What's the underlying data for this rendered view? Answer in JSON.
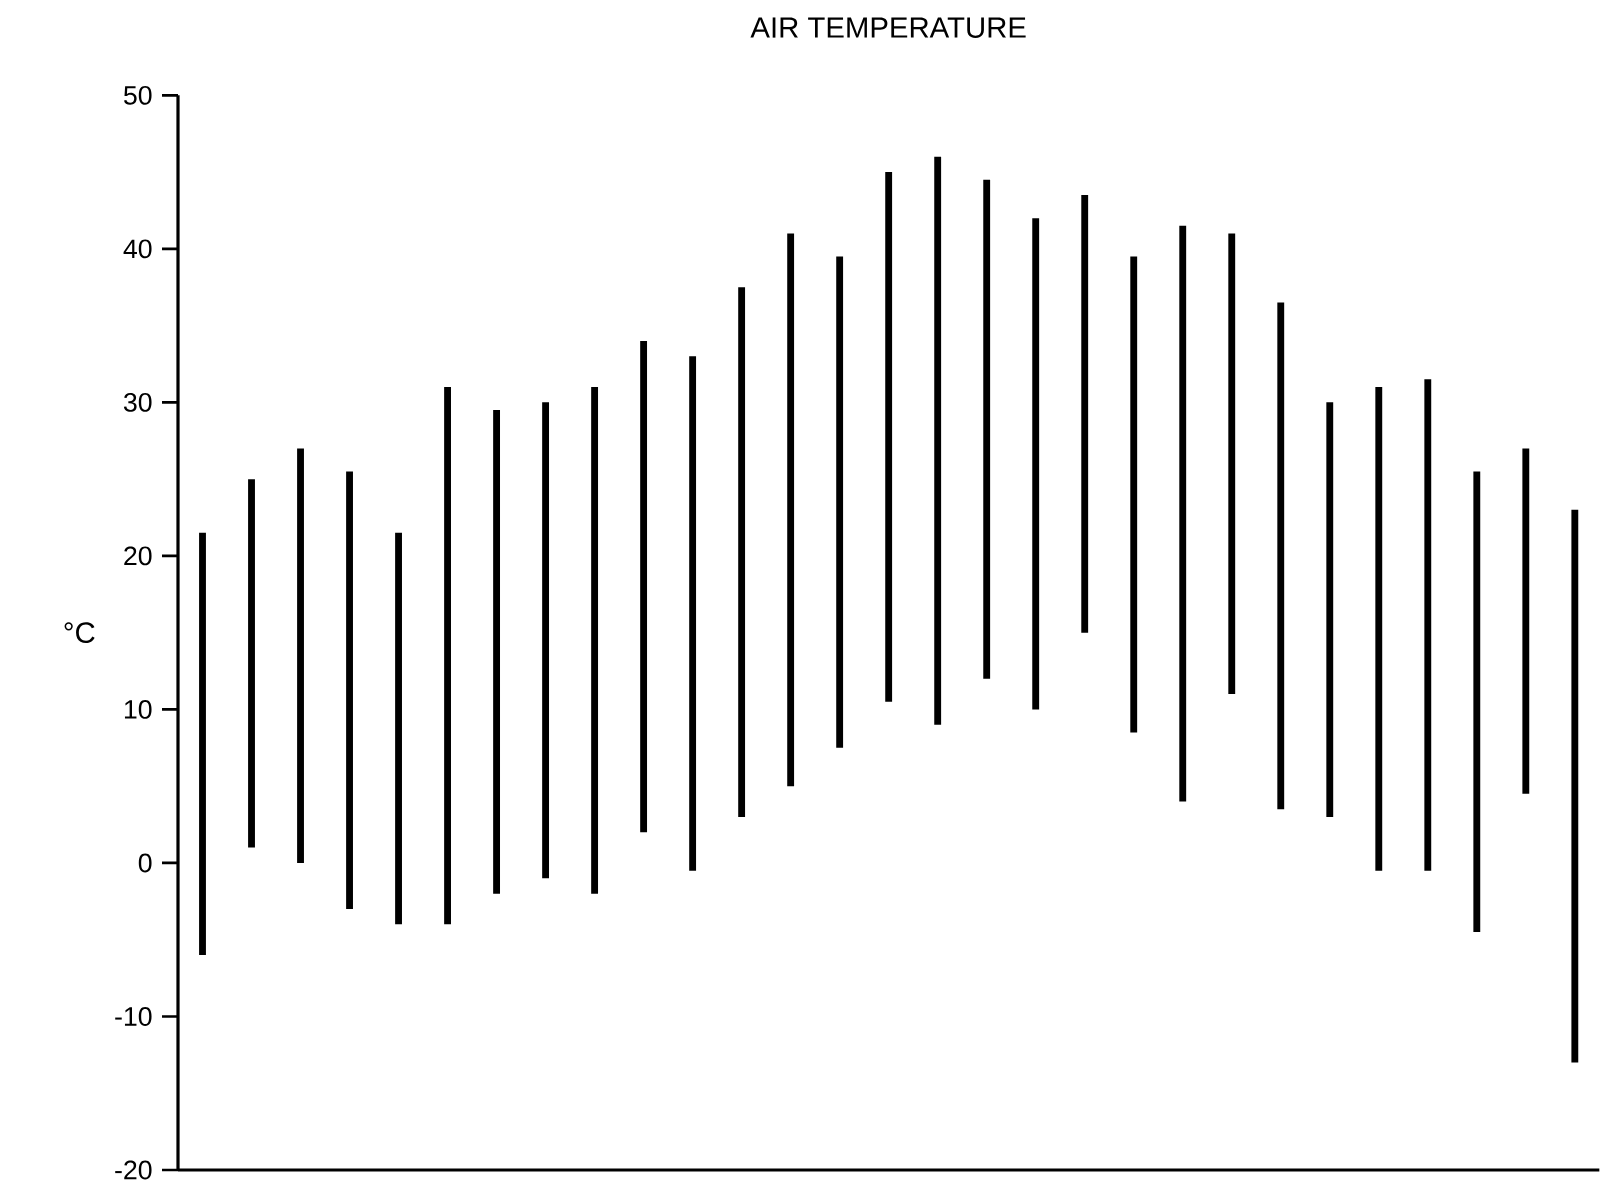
{
  "chart_data": {
    "type": "bar",
    "title": "AIR TEMPERATURE",
    "ylabel": "°C",
    "color": "#000000",
    "categories": [
      null,
      null,
      null,
      null,
      null,
      null,
      null,
      null,
      null,
      null,
      null,
      null,
      null,
      null,
      null,
      null,
      null,
      null,
      null,
      null,
      null,
      null,
      null,
      null,
      null,
      null,
      null,
      null,
      null
    ],
    "base": [
      -6,
      1,
      0,
      -3,
      -4,
      -4,
      -2,
      -1,
      -2,
      2,
      -0.5,
      3,
      5,
      7.5,
      10.5,
      9,
      12,
      10,
      15,
      8.5,
      4,
      11,
      3.5,
      3,
      -0.5,
      -0.5,
      -4.5,
      4.5,
      -13
    ],
    "values": [
      27.5,
      24,
      27,
      28.5,
      25.5,
      35,
      31.5,
      31,
      33,
      32,
      33.5,
      34.5,
      36,
      32,
      34.5,
      37,
      32.5,
      32,
      28.5,
      31,
      37.5,
      30,
      33,
      27,
      31.5,
      32,
      30,
      22.5,
      36
    ],
    "ylim": [
      -20,
      50
    ],
    "yticks": [
      -20,
      -10,
      0,
      10,
      20,
      30,
      40,
      50
    ],
    "tick_labels": "y"
  }
}
